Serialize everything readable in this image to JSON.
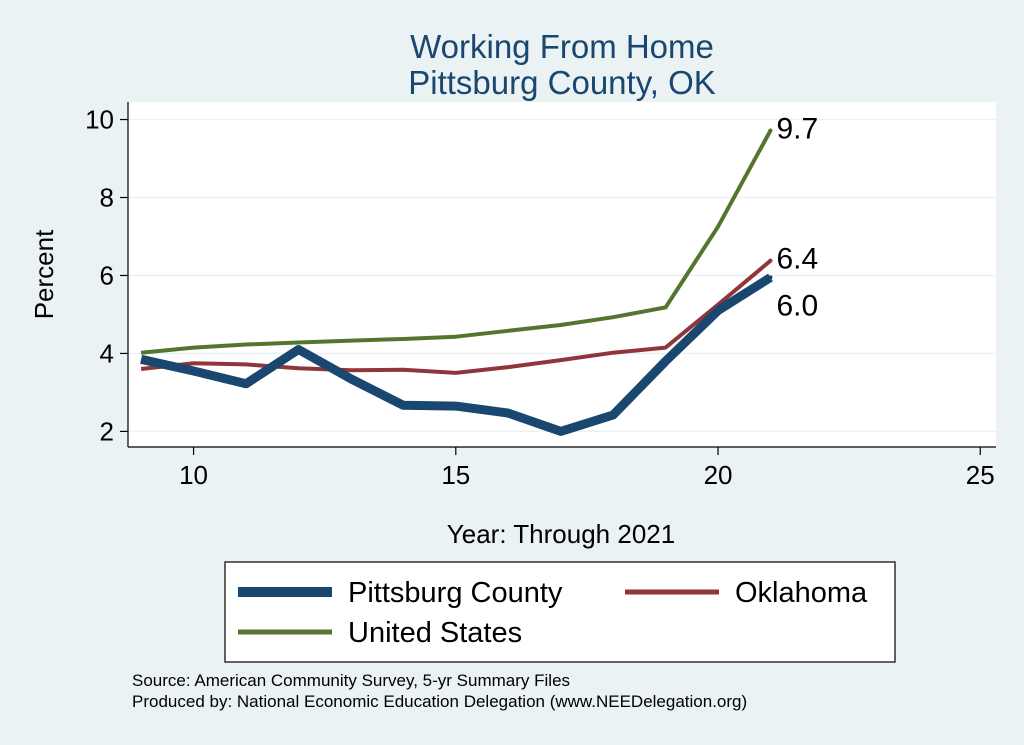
{
  "chart_data": {
    "type": "line",
    "title": [
      "Working From Home",
      "Pittsburg County, OK"
    ],
    "xlabel": "Year: Through 2021",
    "ylabel": "Percent",
    "xlim": [
      8.75,
      25.3
    ],
    "ylim": [
      1.6,
      10.45
    ],
    "x_ticks": [
      10,
      15,
      20,
      25
    ],
    "y_ticks": [
      2,
      4,
      6,
      8,
      10
    ],
    "grid": "horizontal",
    "x": [
      9,
      10,
      11,
      12,
      13,
      14,
      15,
      16,
      17,
      18,
      19,
      20,
      21
    ],
    "series": [
      {
        "name": "Pittsburg County",
        "color": "#1a476f",
        "width": 9,
        "end_label": "6.0",
        "values": [
          3.85,
          3.55,
          3.22,
          4.1,
          3.35,
          2.67,
          2.65,
          2.47,
          2.0,
          2.42,
          3.8,
          5.1,
          5.95
        ]
      },
      {
        "name": "Oklahoma",
        "color": "#90353b",
        "width": 4,
        "end_label": "6.4",
        "values": [
          3.6,
          3.75,
          3.72,
          3.62,
          3.57,
          3.58,
          3.5,
          3.65,
          3.83,
          4.02,
          4.15,
          5.25,
          6.38
        ]
      },
      {
        "name": "United States",
        "color": "#55752f",
        "width": 4,
        "end_label": "9.7",
        "values": [
          4.02,
          4.15,
          4.23,
          4.28,
          4.33,
          4.37,
          4.43,
          4.58,
          4.73,
          4.93,
          5.18,
          7.25,
          9.72
        ]
      }
    ],
    "legend": {
      "placement": "bottom",
      "order": [
        "Pittsburg County",
        "Oklahoma",
        "United States"
      ]
    }
  },
  "footer": {
    "source": "Source: American Community Survey, 5-yr Summary Files",
    "produced": "Produced by: National Economic Education Delegation (www.NEEDelegation.org)"
  },
  "colors": {
    "background": "#eaf2f3",
    "plot_bg": "#ffffff",
    "title": "#1a476f",
    "grid": "#eaf2f3"
  }
}
